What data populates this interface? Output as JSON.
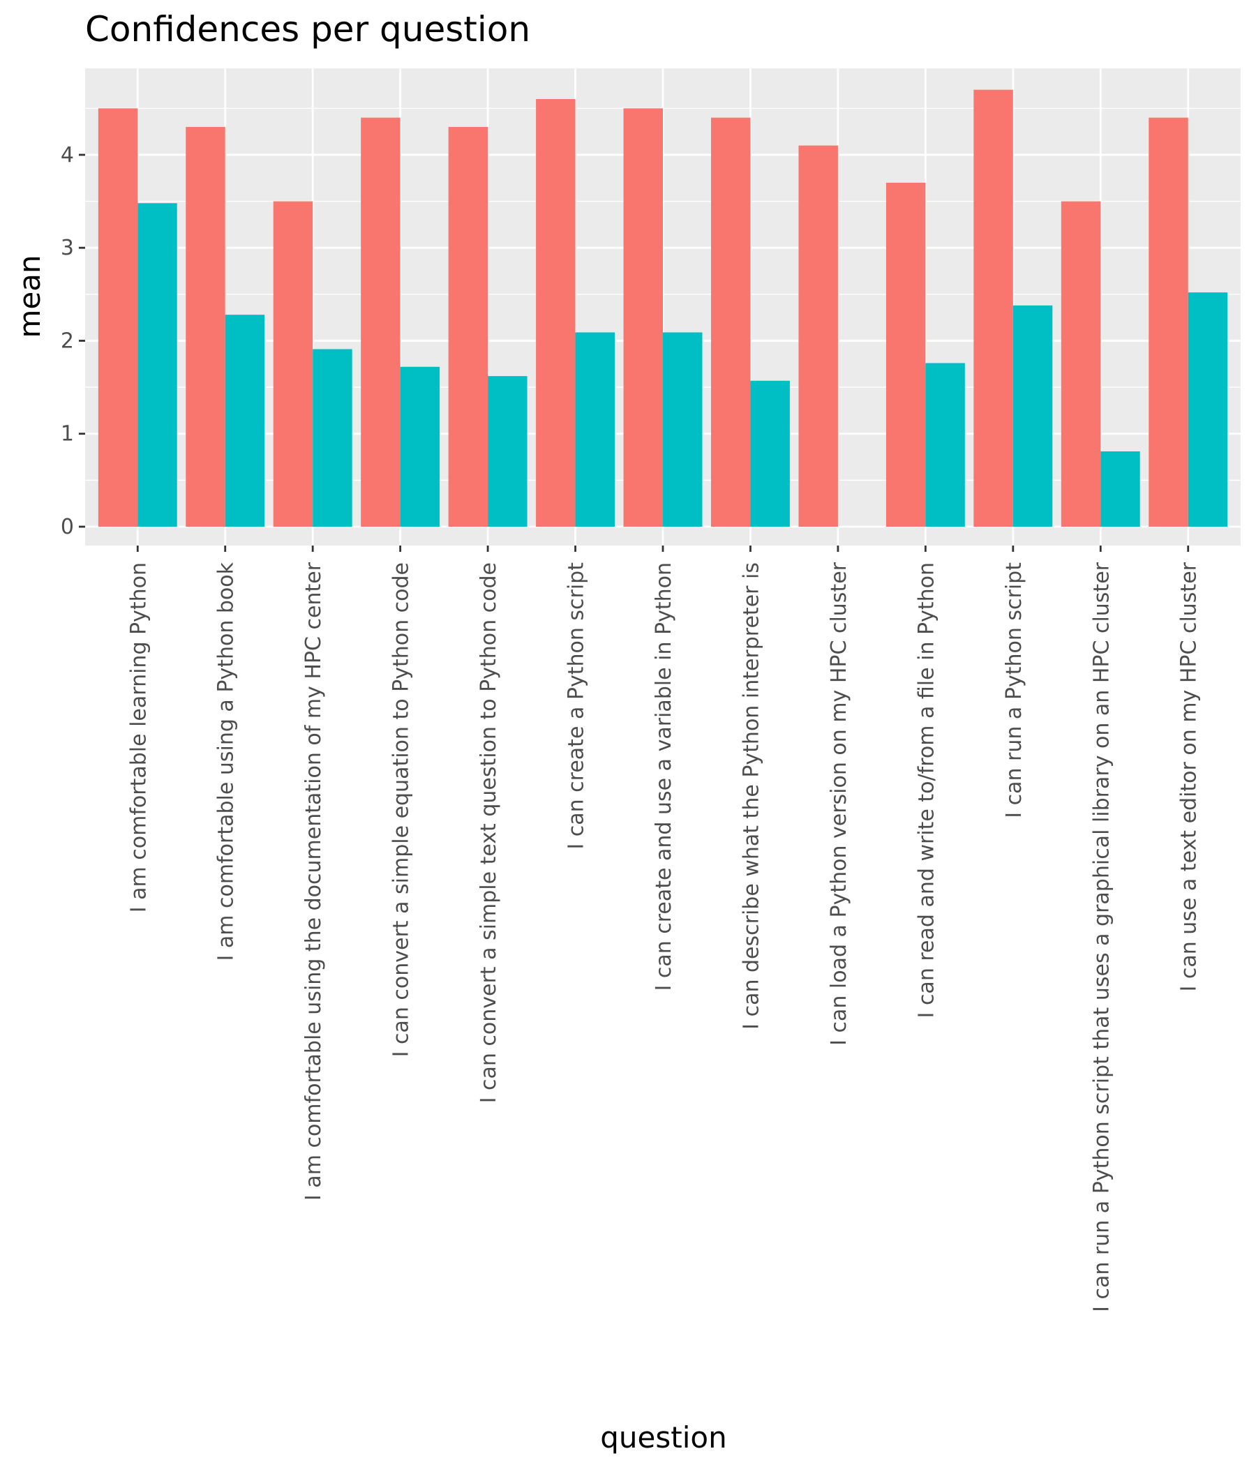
{
  "chart_data": {
    "type": "bar",
    "title": "Confidences per question",
    "xlabel": "question",
    "ylabel": "mean",
    "ylim": [
      0,
      4.93
    ],
    "yticks": [
      0,
      1,
      2,
      3,
      4
    ],
    "grid": true,
    "legend": "none",
    "categories": [
      "I am comfortable learning Python",
      "I am comfortable using a Python book",
      "I am comfortable using the documentation of my HPC center",
      "I can convert a simple equation to Python code",
      "I can convert a simple text question to Python code",
      "I can create a Python script",
      "I can create and use a variable in Python",
      "I can describe what the Python interpreter is",
      "I can load a Python version on my HPC cluster",
      "I can read and write to/from a file in Python",
      "I can run a Python script",
      "I can run a Python script that uses a graphical library on an HPC cluster",
      "I can use a text editor on my HPC cluster"
    ],
    "series": [
      {
        "color": "#F8766D",
        "values": [
          4.5,
          4.3,
          3.5,
          4.4,
          4.3,
          4.6,
          4.5,
          4.4,
          4.1,
          3.7,
          4.7,
          3.5,
          4.4
        ]
      },
      {
        "color": "#00BFC4",
        "values": [
          3.48,
          2.28,
          1.91,
          1.72,
          1.62,
          2.09,
          2.09,
          1.57,
          0,
          1.76,
          2.38,
          0.81,
          2.52
        ]
      }
    ],
    "panel_background": "#EBEBEB",
    "grid_color": "#FFFFFF"
  }
}
